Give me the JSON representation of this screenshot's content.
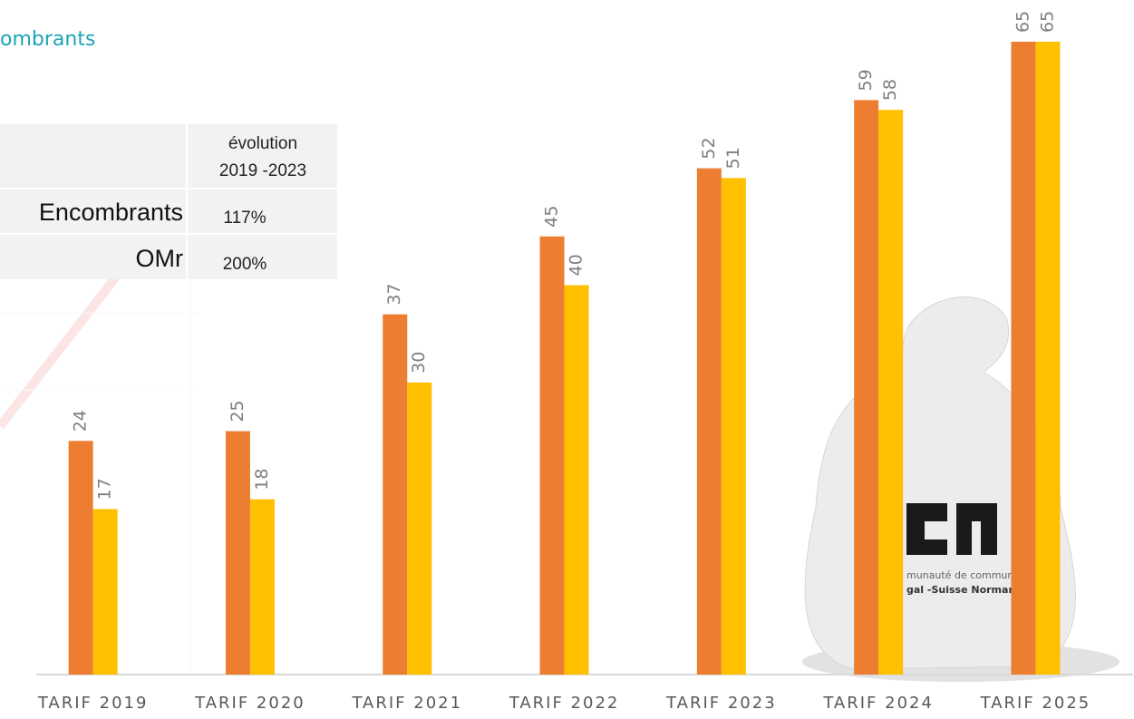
{
  "chart_data": {
    "type": "bar",
    "title": "ombrants",
    "categories": [
      "TARIF 2019",
      "TARIF 2020",
      "TARIF 2021",
      "TARIF 2022",
      "TARIF 2023",
      "TARIF 2024",
      "TARIF 2025"
    ],
    "series": [
      {
        "color": "#ed7d31",
        "values": [
          24,
          25,
          37,
          45,
          52,
          59,
          65
        ]
      },
      {
        "color": "#ffc000",
        "values": [
          17,
          18,
          30,
          40,
          51,
          58,
          65
        ]
      }
    ],
    "table": {
      "header": [
        "évolution",
        "2019 -2023"
      ],
      "rows": [
        [
          "Encombrants",
          "117%"
        ],
        [
          "OMr",
          "200%"
        ]
      ]
    },
    "image_text": [
      "munauté de commun",
      "gal -Suisse Norman"
    ]
  }
}
